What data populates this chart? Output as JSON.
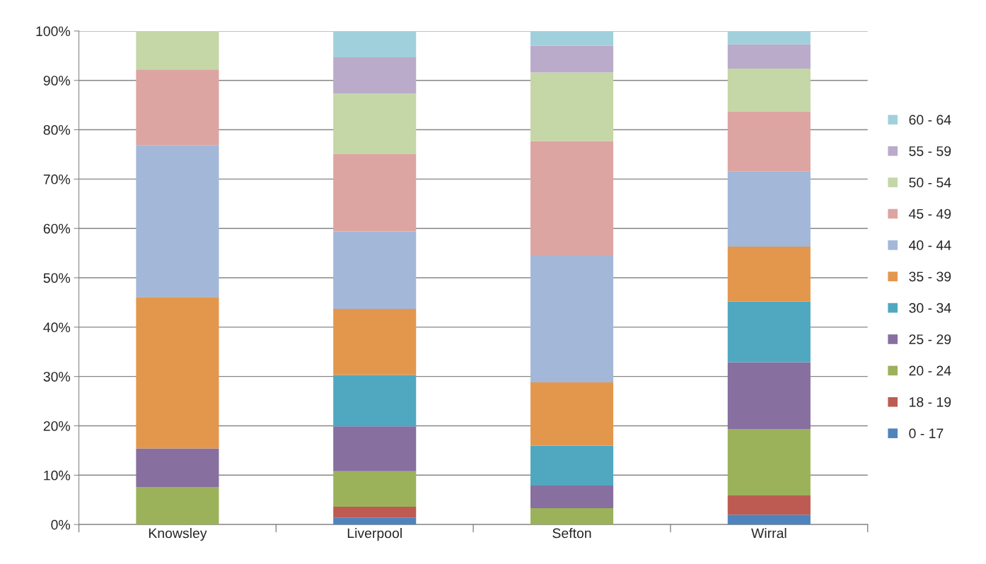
{
  "chart_data": {
    "type": "bar",
    "stacked": true,
    "categories": [
      "Knowsley",
      "Liverpool",
      "Sefton",
      "Wirral"
    ],
    "series": [
      {
        "name": "0 - 17",
        "color": "#4f83bc",
        "values": [
          0,
          1.4,
          0,
          2.0
        ]
      },
      {
        "name": "18 - 19",
        "color": "#bd5b52",
        "values": [
          0,
          2.2,
          0,
          3.9
        ]
      },
      {
        "name": "20 - 24",
        "color": "#9bb25a",
        "values": [
          7.6,
          7.2,
          3.3,
          13.4
        ]
      },
      {
        "name": "25 - 29",
        "color": "#876f9f",
        "values": [
          7.8,
          9.1,
          4.6,
          13.6
        ]
      },
      {
        "name": "30 - 34",
        "color": "#4fa8bf",
        "values": [
          0,
          10.4,
          8.1,
          12.3
        ]
      },
      {
        "name": "35 - 39",
        "color": "#e3974d",
        "values": [
          30.7,
          13.4,
          12.8,
          11.1
        ]
      },
      {
        "name": "40 - 44",
        "color": "#a3b7d9",
        "values": [
          30.8,
          15.7,
          25.8,
          15.3
        ]
      },
      {
        "name": "45 - 49",
        "color": "#dca5a2",
        "values": [
          15.3,
          15.7,
          23.1,
          12.1
        ]
      },
      {
        "name": "50 - 54",
        "color": "#c5d6a7",
        "values": [
          7.8,
          12.2,
          13.9,
          8.7
        ]
      },
      {
        "name": "55 - 59",
        "color": "#b9abc9",
        "values": [
          0,
          7.4,
          5.4,
          4.9
        ]
      },
      {
        "name": "60 - 64",
        "color": "#a1d0dd",
        "values": [
          0,
          5.3,
          3.0,
          2.7
        ]
      }
    ],
    "ylim": [
      0,
      100
    ],
    "yticks": [
      {
        "value": 0,
        "label": "0%"
      },
      {
        "value": 10,
        "label": "10%"
      },
      {
        "value": 20,
        "label": "20%"
      },
      {
        "value": 30,
        "label": "30%"
      },
      {
        "value": 40,
        "label": "40%"
      },
      {
        "value": 50,
        "label": "50%"
      },
      {
        "value": 60,
        "label": "60%"
      },
      {
        "value": 70,
        "label": "70%"
      },
      {
        "value": 80,
        "label": "80%"
      },
      {
        "value": 90,
        "label": "90%"
      },
      {
        "value": 100,
        "label": "100%"
      }
    ],
    "grid": "y",
    "legend": "right"
  }
}
